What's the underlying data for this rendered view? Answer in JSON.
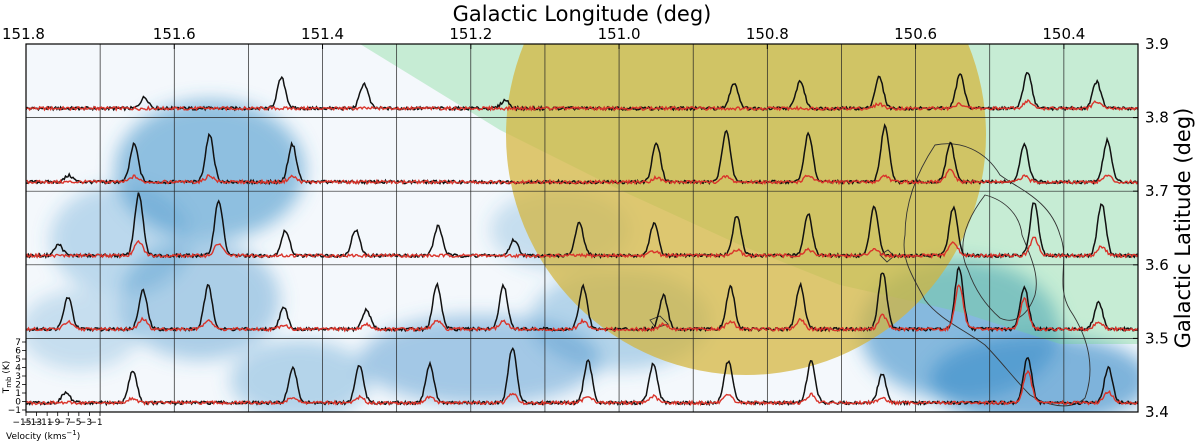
{
  "chart_data": {
    "type": "line",
    "title": "",
    "xlabel": "Galactic Longitude (deg)",
    "ylabel": "Galactic Latitude (deg)",
    "xlim": [
      151.8,
      150.3
    ],
    "ylim": [
      3.4,
      3.9
    ],
    "x_ticks": [
      "151.8",
      "151.6",
      "151.4",
      "151.2",
      "151.0",
      "150.8",
      "150.6",
      "150.4"
    ],
    "y_ticks": [
      "3.9",
      "3.8",
      "3.7",
      "3.6",
      "3.5",
      "3.4"
    ],
    "grid": true,
    "grid_cols": 15,
    "grid_rows": 5,
    "inset_axes": {
      "ylabel": "T",
      "ylabel_sub": "mb",
      "ylabel_unit": " (K)",
      "xlabel": "Velocity (kms",
      "xlabel_sup": "−1",
      "xlabel_close": ")",
      "y_ticks": [
        "7",
        "6",
        "5",
        "4",
        "3",
        "2",
        "1",
        "0",
        "−1"
      ],
      "x_ticks": [
        "−15",
        "−13",
        "−11",
        "−9",
        "−7",
        "−5",
        "−3",
        "−1"
      ],
      "vrange": [
        -15,
        -1
      ]
    },
    "colors": {
      "black_line": "#111111",
      "red_line": "#d9342b",
      "yellow_circle": "#d4b43a",
      "green_region": "#6fd68a",
      "blue_map": "#3d8fc9"
    },
    "series": [
      {
        "color": "#111111",
        "rows": [
          [
            0,
            1.2,
            0,
            3.3,
            2.7,
            0,
            0.9,
            0,
            0,
            2.8,
            3.0,
            3.4,
            3.7,
            4.0,
            2.9
          ],
          [
            0.7,
            4.1,
            5.1,
            4.1,
            0,
            0,
            0,
            0,
            4.3,
            5.6,
            5.3,
            6.1,
            4.2,
            4.0,
            4.5
          ],
          [
            1.2,
            6.7,
            6.0,
            2.7,
            2.8,
            3.2,
            1.7,
            3.5,
            3.5,
            4.3,
            4.6,
            5.3,
            5.2,
            5.8,
            5.7
          ],
          [
            3.5,
            4.2,
            4.7,
            2.3,
            2.1,
            4.8,
            4.7,
            4.6,
            3.7,
            4.6,
            4.8,
            6.3,
            6.7,
            4.6,
            3.0
          ],
          [
            1.1,
            3.5,
            0,
            3.8,
            4.1,
            4.2,
            6.0,
            4.5,
            4.2,
            4.5,
            4.5,
            3.1,
            0,
            5.0,
            3.8
          ]
        ]
      },
      {
        "color": "#d9342b",
        "rows": [
          [
            0,
            0,
            0,
            0,
            0,
            0,
            0,
            0,
            0,
            0,
            0,
            0.5,
            0.5,
            0.8,
            0.7
          ],
          [
            0,
            0.6,
            0.7,
            0.6,
            0,
            0,
            0,
            0,
            0.5,
            0.6,
            0.7,
            0.7,
            1.3,
            0.6,
            0.7
          ],
          [
            0,
            1.5,
            1.3,
            0,
            0,
            0,
            0,
            0,
            0.5,
            0.6,
            0.7,
            0.8,
            1.5,
            1.9,
            1.0
          ],
          [
            0.8,
            1.1,
            1.1,
            0.5,
            0.5,
            0.9,
            0.9,
            0.9,
            0.6,
            0.9,
            1.0,
            1.5,
            4.8,
            3.3,
            0.8
          ],
          [
            0,
            0.5,
            0,
            0.6,
            0.6,
            0.7,
            1.0,
            0.8,
            0.7,
            0.8,
            0.9,
            0.6,
            0,
            3.4,
            1.2
          ]
        ]
      }
    ]
  }
}
